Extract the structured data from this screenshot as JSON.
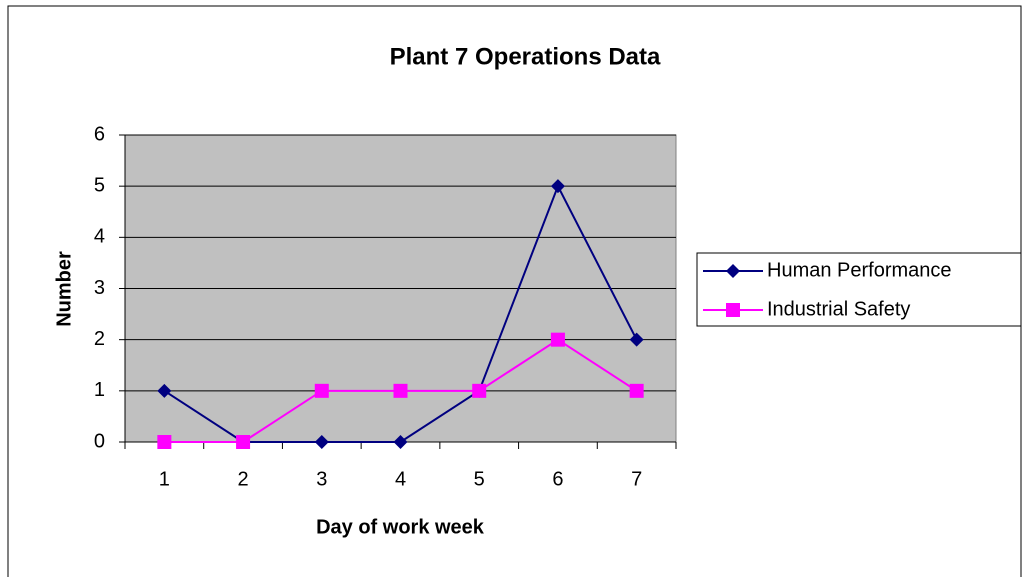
{
  "chart_data": {
    "type": "line",
    "title": "Plant 7 Operations Data",
    "x_label": "Day of work week",
    "y_label": "Number",
    "categories": [
      "1",
      "2",
      "3",
      "4",
      "5",
      "6",
      "7"
    ],
    "series": [
      {
        "name": "Human Performance",
        "color": "#000080",
        "marker": "diamond",
        "values": [
          1,
          0,
          0,
          0,
          1,
          5,
          2
        ]
      },
      {
        "name": "Industrial Safety",
        "color": "#ff00ff",
        "marker": "square",
        "values": [
          0,
          0,
          1,
          1,
          1,
          2,
          1
        ]
      }
    ],
    "ylim": [
      0,
      6
    ],
    "yticks": [
      0,
      1,
      2,
      3,
      4,
      5,
      6
    ],
    "grid": true,
    "legend": "right"
  }
}
